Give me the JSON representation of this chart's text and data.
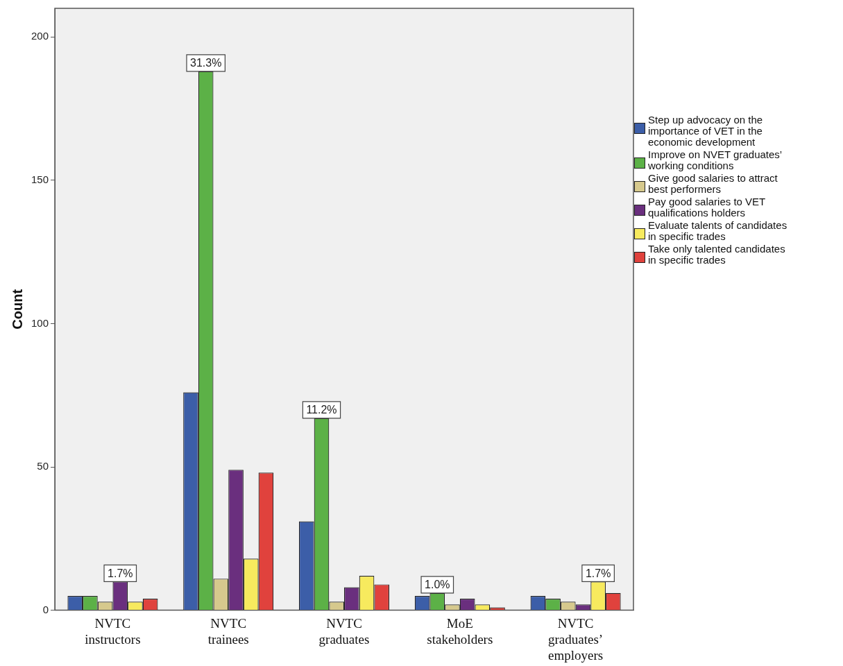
{
  "chart_data": {
    "type": "bar",
    "ylabel": "Count",
    "categories": [
      "NVTC instructors",
      "NVTC trainees",
      "NVTC graduates",
      "MoE stakeholders",
      "NVTC graduates’ employers"
    ],
    "series": [
      {
        "name": "Step up advocacy on the importance of VET in the economic development",
        "color": "#3c5ea8",
        "values": [
          5,
          76,
          31,
          5,
          5
        ]
      },
      {
        "name": "Improve on NVET graduates’ working conditions",
        "color": "#5cb147",
        "values": [
          5,
          188,
          67,
          6,
          4
        ]
      },
      {
        "name": "Give good salaries to attract best performers",
        "color": "#d6c98d",
        "values": [
          3,
          11,
          3,
          2,
          3
        ]
      },
      {
        "name": "Pay good salaries to VET qualifications holders",
        "color": "#6a2f7e",
        "values": [
          10,
          49,
          8,
          4,
          2
        ]
      },
      {
        "name": "Evaluate talents of candidates in specific trades",
        "color": "#f7ea5e",
        "values": [
          3,
          18,
          12,
          2,
          10
        ]
      },
      {
        "name": "Take only talented candidates in specific trades",
        "color": "#e0423d",
        "values": [
          4,
          48,
          9,
          1,
          6
        ]
      }
    ],
    "ylim": [
      0,
      210
    ],
    "yticks": [
      0,
      50,
      100,
      150,
      200
    ],
    "grid": false,
    "legend": "right",
    "annotations": [
      "1.7%",
      "31.3%",
      "11.2%",
      "1.0%",
      "1.7%"
    ]
  }
}
